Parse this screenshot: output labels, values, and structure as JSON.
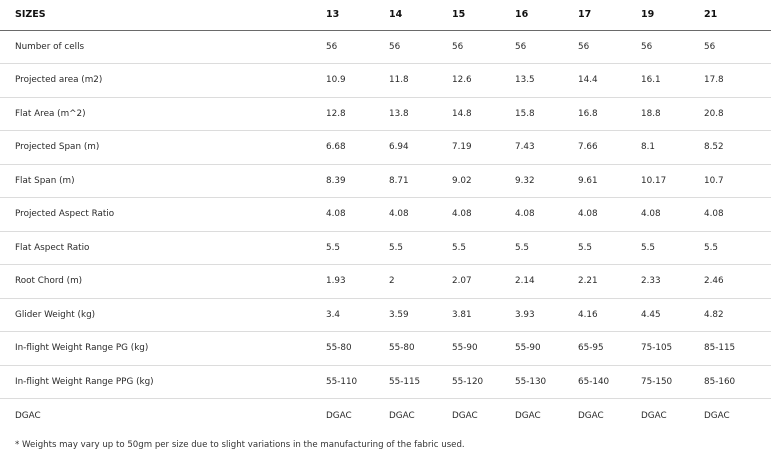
{
  "table": {
    "header_label": "SIZES",
    "sizes": [
      "13",
      "14",
      "15",
      "16",
      "17",
      "19",
      "21"
    ],
    "rows": [
      {
        "label": "Number of cells",
        "values": [
          "56",
          "56",
          "56",
          "56",
          "56",
          "56",
          "56"
        ]
      },
      {
        "label": "Projected area (m2)",
        "values": [
          "10.9",
          "11.8",
          "12.6",
          "13.5",
          "14.4",
          "16.1",
          "17.8"
        ]
      },
      {
        "label": "Flat Area (m^2)",
        "values": [
          "12.8",
          "13.8",
          "14.8",
          "15.8",
          "16.8",
          "18.8",
          "20.8"
        ]
      },
      {
        "label": "Projected Span (m)",
        "values": [
          "6.68",
          "6.94",
          "7.19",
          "7.43",
          "7.66",
          "8.1",
          "8.52"
        ]
      },
      {
        "label": "Flat Span (m)",
        "values": [
          "8.39",
          "8.71",
          "9.02",
          "9.32",
          "9.61",
          "10.17",
          "10.7"
        ]
      },
      {
        "label": "Projected Aspect Ratio",
        "values": [
          "4.08",
          "4.08",
          "4.08",
          "4.08",
          "4.08",
          "4.08",
          "4.08"
        ]
      },
      {
        "label": "Flat Aspect Ratio",
        "values": [
          "5.5",
          "5.5",
          "5.5",
          "5.5",
          "5.5",
          "5.5",
          "5.5"
        ]
      },
      {
        "label": "Root Chord (m)",
        "values": [
          "1.93",
          "2",
          "2.07",
          "2.14",
          "2.21",
          "2.33",
          "2.46"
        ]
      },
      {
        "label": "Glider Weight (kg)",
        "values": [
          "3.4",
          "3.59",
          "3.81",
          "3.93",
          "4.16",
          "4.45",
          "4.82"
        ]
      },
      {
        "label": "In-flight Weight Range PG (kg)",
        "values": [
          "55-80",
          "55-80",
          "55-90",
          "55-90",
          "65-95",
          "75-105",
          "85-115"
        ]
      },
      {
        "label": "In-flight Weight Range PPG (kg)",
        "values": [
          "55-110",
          "55-115",
          "55-120",
          "55-130",
          "65-140",
          "75-150",
          "85-160"
        ]
      },
      {
        "label": "DGAC",
        "values": [
          "DGAC",
          "DGAC",
          "DGAC",
          "DGAC",
          "DGAC",
          "DGAC",
          "DGAC"
        ]
      }
    ]
  },
  "footnote": "* Weights may vary up to 50gm per size due to slight variations in the manufacturing of the fabric used."
}
